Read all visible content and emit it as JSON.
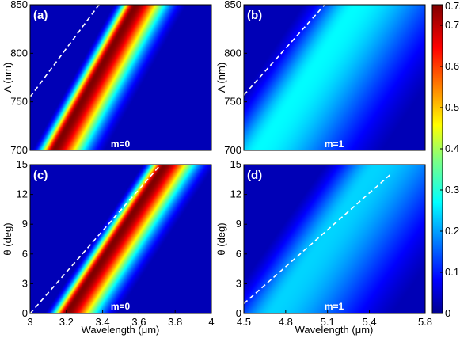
{
  "chart_data": [
    {
      "id": "a",
      "type": "heatmap",
      "panel_label": "(a)",
      "annotation": "m=0",
      "xlabel": "",
      "ylabel": "Λ (nm)",
      "xlim": [
        3,
        4
      ],
      "ylim": [
        700,
        850
      ],
      "xticks": [],
      "yticks": [
        "700",
        "750",
        "800",
        "850"
      ],
      "ridge": {
        "x_at_ymin": 3.13,
        "x_at_ymax": 3.58,
        "peak": 0.75,
        "width": 0.09
      },
      "dashed_line": {
        "x": [
          3.0,
          3.38
        ],
        "y": [
          755,
          850
        ]
      }
    },
    {
      "id": "b",
      "type": "heatmap",
      "panel_label": "(b)",
      "annotation": "m=1",
      "xlabel": "",
      "ylabel": "Λ (nm)",
      "xlim": [
        4.5,
        5.8
      ],
      "ylim": [
        700,
        850
      ],
      "xticks": [],
      "yticks": [
        "700",
        "750",
        "800",
        "850"
      ],
      "ridge": {
        "x_at_ymin": 4.6,
        "x_at_ymax": 5.3,
        "peak": 0.28,
        "width": 0.35
      },
      "dashed_line": {
        "x": [
          4.5,
          5.08
        ],
        "y": [
          757,
          850
        ]
      }
    },
    {
      "id": "c",
      "type": "heatmap",
      "panel_label": "(c)",
      "annotation": "m=0",
      "xlabel": "Wavelength (μm)",
      "ylabel": "θ (deg)",
      "xlim": [
        3,
        4
      ],
      "ylim": [
        0,
        15
      ],
      "xticks": [
        "3",
        "3.2",
        "3.4",
        "3.6",
        "3.8",
        "4"
      ],
      "yticks": [
        "0",
        "3",
        "6",
        "9",
        "12",
        "15"
      ],
      "ridge": {
        "x_at_ymin": 3.2,
        "x_at_ymax": 3.74,
        "peak": 0.75,
        "width": 0.09
      },
      "dashed_line": {
        "x": [
          3.0,
          3.72
        ],
        "y": [
          0,
          15
        ]
      }
    },
    {
      "id": "d",
      "type": "heatmap",
      "panel_label": "(d)",
      "annotation": "m=1",
      "xlabel": "Wavelength (μm)",
      "ylabel": "θ (deg)",
      "xlim": [
        4.5,
        5.8
      ],
      "ylim": [
        0,
        15
      ],
      "xticks": [
        "4.5",
        "4.8",
        "5.1",
        "5.4",
        "5.8"
      ],
      "yticks": [
        "0",
        "3",
        "6",
        "9",
        "12",
        "15"
      ],
      "ridge": {
        "x_at_ymin": 4.7,
        "x_at_ymax": 5.45,
        "peak": 0.25,
        "width": 0.35
      },
      "dashed_line": {
        "x": [
          4.5,
          5.55
        ],
        "y": [
          1,
          14
        ]
      }
    }
  ],
  "colorbar": {
    "colormap": "jet",
    "range": [
      0,
      0.75
    ],
    "ticks": [
      "0",
      "0.1",
      "0.2",
      "0.3",
      "0.4",
      "0.5",
      "0.6",
      "0.7",
      "0.75"
    ]
  }
}
